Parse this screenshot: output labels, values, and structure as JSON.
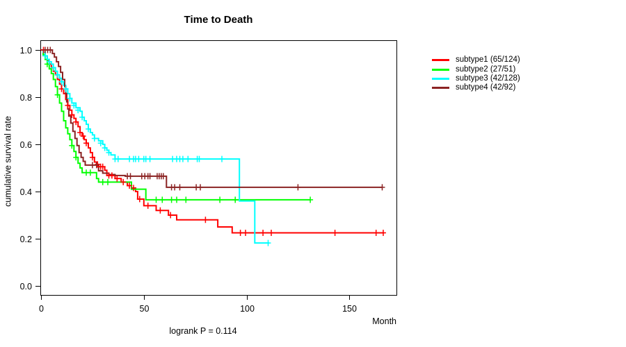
{
  "title": "Time to Death",
  "annotation": "logrank P = 0.114",
  "chart_data": {
    "type": "line",
    "subtype": "kaplan-meier-step-curves",
    "title": "Time to Death",
    "xlabel": "Month",
    "ylabel": "cumulative survival rate",
    "xlim": [
      0,
      173
    ],
    "ylim": [
      -0.04,
      1.04
    ],
    "grid": false,
    "legend_position": "right-outside",
    "x_ticks": [
      {
        "value": 0,
        "label": "0"
      },
      {
        "value": 50,
        "label": "50"
      },
      {
        "value": 100,
        "label": "100"
      },
      {
        "value": 150,
        "label": "150"
      }
    ],
    "y_ticks": [
      {
        "value": 0.0,
        "label": "0.0"
      },
      {
        "value": 0.2,
        "label": "0.2"
      },
      {
        "value": 0.4,
        "label": "0.4"
      },
      {
        "value": 0.6,
        "label": "0.6"
      },
      {
        "value": 0.8,
        "label": "0.8"
      },
      {
        "value": 1.0,
        "label": "1.0"
      }
    ],
    "series": [
      {
        "name": "subtype1",
        "legend_label": "subtype1 (65/124)",
        "events_total": "65/124",
        "color": "#ff0000",
        "steps": [
          [
            0,
            1.0
          ],
          [
            1,
            0.99
          ],
          [
            2,
            0.975
          ],
          [
            3,
            0.955
          ],
          [
            4,
            0.94
          ],
          [
            5,
            0.925
          ],
          [
            6,
            0.91
          ],
          [
            7,
            0.895
          ],
          [
            8,
            0.875
          ],
          [
            9,
            0.855
          ],
          [
            10,
            0.835
          ],
          [
            11,
            0.815
          ],
          [
            12,
            0.79
          ],
          [
            13,
            0.765
          ],
          [
            14,
            0.745
          ],
          [
            15,
            0.725
          ],
          [
            16,
            0.71
          ],
          [
            17,
            0.695
          ],
          [
            18,
            0.675
          ],
          [
            19,
            0.65
          ],
          [
            20,
            0.635
          ],
          [
            21,
            0.62
          ],
          [
            22,
            0.605
          ],
          [
            23,
            0.585
          ],
          [
            24,
            0.565
          ],
          [
            25,
            0.545
          ],
          [
            26,
            0.525
          ],
          [
            27,
            0.515
          ],
          [
            28,
            0.505
          ],
          [
            31,
            0.49
          ],
          [
            32,
            0.468
          ],
          [
            36,
            0.455
          ],
          [
            39,
            0.44
          ],
          [
            42,
            0.425
          ],
          [
            44,
            0.415
          ],
          [
            46,
            0.4
          ],
          [
            47,
            0.368
          ],
          [
            50,
            0.34
          ],
          [
            56,
            0.32
          ],
          [
            62,
            0.3
          ],
          [
            66,
            0.28
          ],
          [
            86,
            0.25
          ],
          [
            93,
            0.225
          ],
          [
            167,
            0.225
          ]
        ],
        "censor_marks": [
          [
            1.2,
            1.0
          ],
          [
            10,
            0.835
          ],
          [
            13,
            0.765
          ],
          [
            15,
            0.725
          ],
          [
            17,
            0.695
          ],
          [
            19,
            0.65
          ],
          [
            20.5,
            0.635
          ],
          [
            22,
            0.605
          ],
          [
            25,
            0.545
          ],
          [
            27.5,
            0.515
          ],
          [
            29,
            0.505
          ],
          [
            30,
            0.505
          ],
          [
            33,
            0.468
          ],
          [
            34.5,
            0.468
          ],
          [
            37,
            0.455
          ],
          [
            40,
            0.44
          ],
          [
            43,
            0.425
          ],
          [
            45,
            0.415
          ],
          [
            48,
            0.368
          ],
          [
            52,
            0.34
          ],
          [
            58,
            0.32
          ],
          [
            63,
            0.3
          ],
          [
            80,
            0.28
          ],
          [
            97,
            0.225
          ],
          [
            99.5,
            0.225
          ],
          [
            108,
            0.225
          ],
          [
            112,
            0.225
          ],
          [
            143,
            0.225
          ],
          [
            163,
            0.225
          ],
          [
            166.5,
            0.225
          ]
        ]
      },
      {
        "name": "subtype2",
        "legend_label": "subtype2 (27/51)",
        "events_total": "27/51",
        "color": "#00ff00",
        "steps": [
          [
            0,
            1.0
          ],
          [
            1,
            0.98
          ],
          [
            2,
            0.96
          ],
          [
            3,
            0.94
          ],
          [
            4,
            0.92
          ],
          [
            5,
            0.9
          ],
          [
            6,
            0.875
          ],
          [
            7,
            0.845
          ],
          [
            8,
            0.81
          ],
          [
            9,
            0.775
          ],
          [
            10,
            0.74
          ],
          [
            11,
            0.7
          ],
          [
            12,
            0.67
          ],
          [
            13,
            0.645
          ],
          [
            14,
            0.62
          ],
          [
            15,
            0.595
          ],
          [
            16,
            0.57
          ],
          [
            17,
            0.545
          ],
          [
            18,
            0.52
          ],
          [
            19,
            0.5
          ],
          [
            20,
            0.48
          ],
          [
            27,
            0.455
          ],
          [
            28,
            0.44
          ],
          [
            44,
            0.41
          ],
          [
            51,
            0.365
          ],
          [
            131,
            0.365
          ]
        ],
        "censor_marks": [
          [
            3,
            0.94
          ],
          [
            8,
            0.81
          ],
          [
            15,
            0.595
          ],
          [
            17,
            0.545
          ],
          [
            22,
            0.48
          ],
          [
            24,
            0.48
          ],
          [
            30,
            0.44
          ],
          [
            32.5,
            0.44
          ],
          [
            56,
            0.365
          ],
          [
            59,
            0.365
          ],
          [
            63.5,
            0.365
          ],
          [
            66,
            0.365
          ],
          [
            70.5,
            0.365
          ],
          [
            87,
            0.365
          ],
          [
            94.5,
            0.365
          ],
          [
            131,
            0.365
          ]
        ]
      },
      {
        "name": "subtype3",
        "legend_label": "subtype3 (42/128)",
        "events_total": "42/128",
        "color": "#00ffff",
        "steps": [
          [
            0,
            1.0
          ],
          [
            1,
            0.99
          ],
          [
            2,
            0.975
          ],
          [
            3,
            0.96
          ],
          [
            4,
            0.95
          ],
          [
            5,
            0.94
          ],
          [
            6,
            0.925
          ],
          [
            7,
            0.91
          ],
          [
            8,
            0.895
          ],
          [
            9,
            0.88
          ],
          [
            10,
            0.865
          ],
          [
            11,
            0.85
          ],
          [
            12,
            0.835
          ],
          [
            13,
            0.815
          ],
          [
            14,
            0.795
          ],
          [
            15,
            0.775
          ],
          [
            17,
            0.755
          ],
          [
            19,
            0.74
          ],
          [
            20,
            0.715
          ],
          [
            21,
            0.7
          ],
          [
            22,
            0.685
          ],
          [
            23,
            0.665
          ],
          [
            24,
            0.65
          ],
          [
            25,
            0.64
          ],
          [
            26,
            0.625
          ],
          [
            28,
            0.615
          ],
          [
            30,
            0.6
          ],
          [
            31,
            0.585
          ],
          [
            32,
            0.575
          ],
          [
            33,
            0.565
          ],
          [
            34,
            0.555
          ],
          [
            36,
            0.538
          ],
          [
            96.5,
            0.36
          ],
          [
            104,
            0.182
          ],
          [
            111,
            0.182
          ]
        ],
        "censor_marks": [
          [
            2,
            0.975
          ],
          [
            4,
            0.95
          ],
          [
            6,
            0.925
          ],
          [
            8,
            0.895
          ],
          [
            10,
            0.865
          ],
          [
            12,
            0.835
          ],
          [
            14,
            0.795
          ],
          [
            16,
            0.765
          ],
          [
            18,
            0.745
          ],
          [
            20,
            0.715
          ],
          [
            23,
            0.665
          ],
          [
            26,
            0.625
          ],
          [
            29,
            0.605
          ],
          [
            31,
            0.585
          ],
          [
            33,
            0.565
          ],
          [
            36,
            0.538
          ],
          [
            37.5,
            0.538
          ],
          [
            43,
            0.538
          ],
          [
            45,
            0.538
          ],
          [
            46,
            0.538
          ],
          [
            47.5,
            0.538
          ],
          [
            50,
            0.538
          ],
          [
            51,
            0.538
          ],
          [
            53,
            0.538
          ],
          [
            64,
            0.538
          ],
          [
            66,
            0.538
          ],
          [
            67.5,
            0.538
          ],
          [
            69,
            0.538
          ],
          [
            71.5,
            0.538
          ],
          [
            76,
            0.538
          ],
          [
            77,
            0.538
          ],
          [
            88,
            0.538
          ],
          [
            110.5,
            0.182
          ]
        ]
      },
      {
        "name": "subtype4",
        "legend_label": "subtype4 (42/92)",
        "events_total": "42/92",
        "color": "#8b2323",
        "steps": [
          [
            0,
            1.0
          ],
          [
            5.5,
            0.985
          ],
          [
            6.5,
            0.97
          ],
          [
            7.5,
            0.95
          ],
          [
            8.5,
            0.93
          ],
          [
            9.5,
            0.905
          ],
          [
            10.5,
            0.875
          ],
          [
            11.5,
            0.845
          ],
          [
            12,
            0.815
          ],
          [
            12.5,
            0.78
          ],
          [
            13,
            0.75
          ],
          [
            13.5,
            0.72
          ],
          [
            14.5,
            0.69
          ],
          [
            15.5,
            0.655
          ],
          [
            16.5,
            0.625
          ],
          [
            17.5,
            0.595
          ],
          [
            18.5,
            0.565
          ],
          [
            19.5,
            0.545
          ],
          [
            20.5,
            0.528
          ],
          [
            21.5,
            0.512
          ],
          [
            28,
            0.488
          ],
          [
            30,
            0.478
          ],
          [
            33,
            0.472
          ],
          [
            36,
            0.468
          ],
          [
            41,
            0.465
          ],
          [
            61,
            0.418
          ],
          [
            166,
            0.418
          ]
        ],
        "censor_marks": [
          [
            2,
            1.0
          ],
          [
            3.2,
            1.0
          ],
          [
            4.5,
            1.0
          ],
          [
            25,
            0.512
          ],
          [
            27,
            0.512
          ],
          [
            42,
            0.465
          ],
          [
            43.5,
            0.465
          ],
          [
            49,
            0.465
          ],
          [
            50.5,
            0.465
          ],
          [
            52,
            0.465
          ],
          [
            53,
            0.465
          ],
          [
            56.5,
            0.465
          ],
          [
            57.5,
            0.465
          ],
          [
            58.5,
            0.465
          ],
          [
            59.5,
            0.465
          ],
          [
            63.5,
            0.418
          ],
          [
            65,
            0.418
          ],
          [
            67.5,
            0.418
          ],
          [
            75.5,
            0.418
          ],
          [
            77.5,
            0.418
          ],
          [
            125,
            0.418
          ],
          [
            166,
            0.418
          ]
        ]
      }
    ]
  }
}
